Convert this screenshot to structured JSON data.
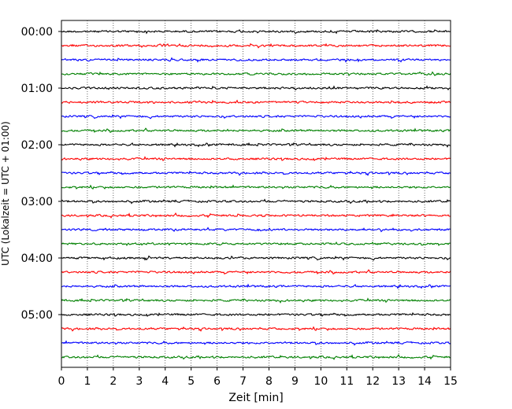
{
  "chart_data": {
    "type": "line",
    "title": "",
    "xlabel": "Zeit  [min]",
    "ylabel": "UTC (Lokalzeit = UTC + 01:00)",
    "xlim": [
      0,
      15
    ],
    "x_ticks": [
      "0",
      "1",
      "2",
      "3",
      "4",
      "5",
      "6",
      "7",
      "8",
      "9",
      "10",
      "11",
      "12",
      "13",
      "14",
      "15"
    ],
    "y_tick_labels": [
      "00:00",
      "01:00",
      "02:00",
      "03:00",
      "04:00",
      "05:00"
    ],
    "trace_interval_min": 15,
    "trace_count": 24,
    "color_cycle": [
      "#000000",
      "#ff0000",
      "#0000ff",
      "#008000"
    ],
    "grid": {
      "vertical": true,
      "style": "dotted"
    },
    "legend": "none"
  }
}
